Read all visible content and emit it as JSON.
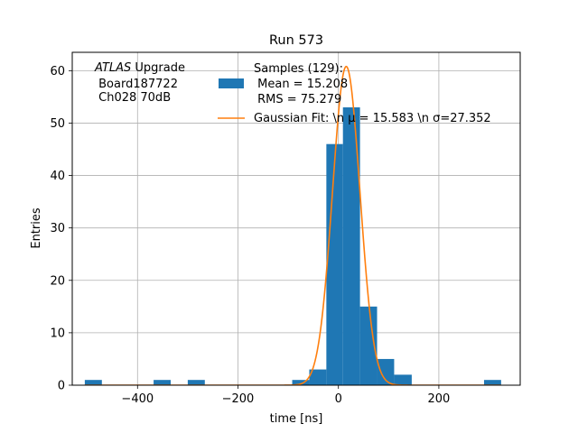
{
  "chart_data": {
    "type": "bar",
    "title": "Run 573",
    "xlabel": "time [ns]",
    "ylabel": "Entries",
    "xlim": [
      -530,
      362
    ],
    "ylim": [
      0,
      63.5
    ],
    "xticks": [
      -400,
      -200,
      0,
      200
    ],
    "xtick_labels": [
      "−400",
      "−200",
      "0",
      "200"
    ],
    "yticks": [
      0,
      10,
      20,
      30,
      40,
      50,
      60
    ],
    "ytick_labels": [
      "0",
      "10",
      "20",
      "30",
      "40",
      "50",
      "60"
    ],
    "grid": true,
    "legend_position": "top-right",
    "annotation": {
      "line1_italic": "ATLAS",
      "line1_rest": " Upgrade",
      "line2": " Board187722",
      "line3": " Ch028 70dB"
    },
    "series": [
      {
        "name": "Samples (129):",
        "name_line2": " Mean = 15.208",
        "name_line3": " RMS = 75.279",
        "kind": "histogram",
        "color": "#1f77b4",
        "bins": [
          {
            "x0": -505,
            "x1": -471,
            "count": 1
          },
          {
            "x0": -368,
            "x1": -334,
            "count": 1
          },
          {
            "x0": -300,
            "x1": -266,
            "count": 1
          },
          {
            "x0": -92,
            "x1": -58,
            "count": 1
          },
          {
            "x0": -58,
            "x1": -24,
            "count": 3
          },
          {
            "x0": -24,
            "x1": 9,
            "count": 46
          },
          {
            "x0": 9,
            "x1": 43,
            "count": 53
          },
          {
            "x0": 43,
            "x1": 77,
            "count": 15
          },
          {
            "x0": 77,
            "x1": 111,
            "count": 5
          },
          {
            "x0": 111,
            "x1": 146,
            "count": 2
          },
          {
            "x0": 290,
            "x1": 324,
            "count": 1
          }
        ]
      },
      {
        "name": "Gaussian Fit: \\n μ = 15.583 \\n σ=27.352",
        "kind": "line",
        "color": "#ff7f0e",
        "mu": 15.583,
        "sigma": 27.352,
        "amplitude": 60.8,
        "x_range": [
          -505,
          324
        ]
      }
    ]
  }
}
